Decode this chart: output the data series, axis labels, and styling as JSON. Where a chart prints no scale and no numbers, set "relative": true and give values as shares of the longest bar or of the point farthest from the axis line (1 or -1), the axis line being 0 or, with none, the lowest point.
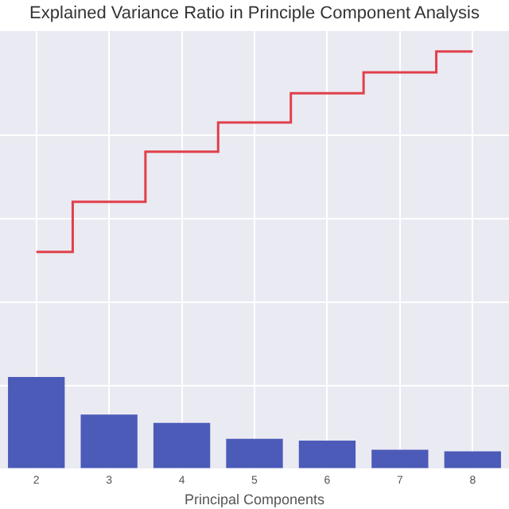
{
  "chart_data": {
    "type": "bar",
    "title": "Explained Variance Ratio in Principle Component Analysis",
    "xlabel": "Principal Components",
    "relative": true,
    "grid": true,
    "categories": [
      "2",
      "3",
      "4",
      "5",
      "6",
      "7",
      "8"
    ],
    "series": [
      {
        "color": "#4c5ab8",
        "values": [
          0.22,
          0.13,
          0.11,
          0.072,
          0.068,
          0.046,
          0.042
        ]
      },
      {
        "type": "step",
        "color": "#e0404a",
        "values": [
          0.52,
          0.64,
          0.76,
          0.83,
          0.9,
          0.95,
          1
        ]
      }
    ]
  }
}
